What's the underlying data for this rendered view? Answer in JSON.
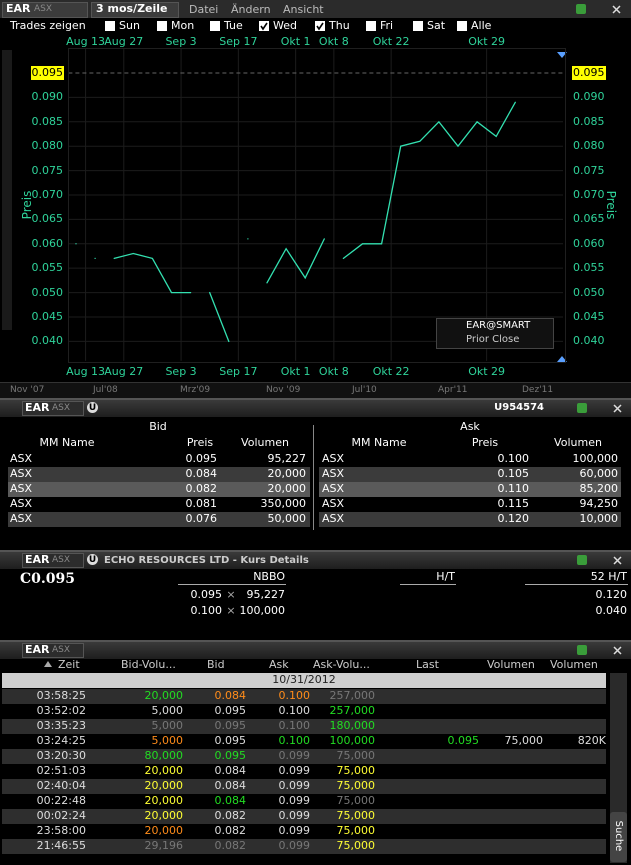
{
  "chart_window": {
    "symbol": "EAR",
    "exchange": "ASX",
    "period": "3 mos/Zeile",
    "menu": [
      "Datei",
      "Ändern",
      "Ansicht"
    ],
    "trades_label": "Trades zeigen",
    "days": [
      {
        "label": "Sun",
        "checked": false
      },
      {
        "label": "Mon",
        "checked": false
      },
      {
        "label": "Tue",
        "checked": false
      },
      {
        "label": "Wed",
        "checked": true
      },
      {
        "label": "Thu",
        "checked": true
      },
      {
        "label": "Fri",
        "checked": false
      },
      {
        "label": "Sat",
        "checked": false
      },
      {
        "label": "Alle",
        "checked": false
      }
    ],
    "chart_data": {
      "type": "line",
      "y_label": "Preis",
      "x": [
        0,
        0.5,
        1,
        1.5,
        2,
        3,
        4,
        5,
        6,
        6.5,
        7,
        8,
        8.5,
        9,
        9.5,
        10,
        11,
        12,
        13,
        13.5,
        14,
        15,
        16,
        17,
        18,
        19,
        20,
        21,
        22,
        23
      ],
      "series": [
        {
          "name": "EAR@SMART",
          "color": "#33e0b0",
          "values": [
            0.06,
            null,
            0.057,
            null,
            0.057,
            0.058,
            0.057,
            0.05,
            0.05,
            null,
            0.05,
            0.04,
            null,
            0.061,
            null,
            0.052,
            0.059,
            0.053,
            0.061,
            null,
            0.057,
            0.06,
            0.06,
            0.08,
            0.081,
            0.085,
            0.08,
            0.085,
            0.082,
            0.089
          ]
        }
      ],
      "prior_close_label": "Prior Close",
      "prior_close": 0.095,
      "xlim": [
        -0.4,
        25.5
      ],
      "ylim": [
        0.036,
        0.1
      ],
      "xticks": [
        {
          "value": 0.5,
          "label": "Aug 13"
        },
        {
          "value": 2.5,
          "label": "Aug 27"
        },
        {
          "value": 5.5,
          "label": "Sep 3"
        },
        {
          "value": 8.5,
          "label": "Sep 17"
        },
        {
          "value": 11.5,
          "label": "Okt 1"
        },
        {
          "value": 13.5,
          "label": "Okt 8"
        },
        {
          "value": 16.5,
          "label": "Okt 22"
        },
        {
          "value": 21.5,
          "label": "Okt 29"
        }
      ],
      "yticks": [
        {
          "value": 0.04,
          "label": "0.040"
        },
        0.045,
        {
          "value": 0.05,
          "label": "0.050"
        },
        0.055,
        {
          "value": 0.06,
          "label": "0.060"
        },
        0.065,
        {
          "value": 0.07,
          "label": "0.070"
        },
        0.075,
        {
          "value": 0.08,
          "label": "0.080"
        },
        0.085,
        {
          "value": 0.09,
          "label": "0.090"
        }
      ],
      "grid": true
    },
    "overview_labels": [
      "Nov '07",
      "Jul'08",
      "Mrz'09",
      "Nov '09",
      "Jul'10",
      "Apr'11",
      "Dez'11"
    ]
  },
  "book": {
    "symbol": "EAR",
    "exchange": "ASX",
    "badge": "U",
    "account": "U954574",
    "bid_title": "Bid",
    "ask_title": "Ask",
    "columns": [
      "MM Name",
      "Preis",
      "Volumen"
    ],
    "bid_rows": [
      [
        "ASX",
        "0.095",
        "95,227"
      ],
      [
        "ASX",
        "0.084",
        "20,000"
      ],
      [
        "ASX",
        "0.082",
        "20,000"
      ],
      [
        "ASX",
        "0.081",
        "350,000"
      ],
      [
        "ASX",
        "0.076",
        "50,000"
      ]
    ],
    "ask_rows": [
      [
        "ASX",
        "0.100",
        "100,000"
      ],
      [
        "ASX",
        "0.105",
        "60,000"
      ],
      [
        "ASX",
        "0.110",
        "85,200"
      ],
      [
        "ASX",
        "0.115",
        "94,250"
      ],
      [
        "ASX",
        "0.120",
        "10,000"
      ]
    ]
  },
  "details": {
    "symbol": "EAR",
    "exchange": "ASX",
    "badge": "U",
    "title": "ECHO RESOURCES LTD - Kurs Details",
    "last": "C0.095",
    "nbbo_label": "NBBO",
    "ht_label": "H/T",
    "hl52_label": "52 H/T",
    "nbbo": [
      [
        "0.095",
        "×",
        "95,227"
      ],
      [
        "0.100",
        "×",
        "100,000"
      ]
    ],
    "hl52": [
      "0.120",
      "0.040"
    ]
  },
  "trades": {
    "symbol": "EAR",
    "exchange": "ASX",
    "columns": [
      "Zeit",
      "Bid-Volu...",
      "Bid",
      "Ask",
      "Ask-Volu...",
      "Last",
      "Volumen",
      "Volumen"
    ],
    "date": "10/31/2012",
    "rows": [
      {
        "time": "03:58:25",
        "bid_size": "20,000",
        "bid": "0.084",
        "ask": "0.100",
        "ask_size": "257,000"
      },
      {
        "time": "03:52:02",
        "bid_size": "5,000",
        "bid": "0.095",
        "ask": "0.100",
        "ask_size": "257,000"
      },
      {
        "time": "03:35:23",
        "bid_size": "5,000",
        "bid": "0.095",
        "ask": "0.100",
        "ask_size": "180,000"
      },
      {
        "time": "03:24:25",
        "bid_size": "5,000",
        "bid": "0.095",
        "ask": "0.100",
        "ask_size": "100,000",
        "last": "0.095",
        "volume": "75,000",
        "total_volume": "820K"
      },
      {
        "time": "03:20:30",
        "bid_size": "80,000",
        "bid": "0.095",
        "ask": "0.099",
        "ask_size": "75,000"
      },
      {
        "time": "02:51:03",
        "bid_size": "20,000",
        "bid": "0.084",
        "ask": "0.099",
        "ask_size": "75,000"
      },
      {
        "time": "02:40:04",
        "bid_size": "20,000",
        "bid": "0.084",
        "ask": "0.099",
        "ask_size": "75,000"
      },
      {
        "time": "00:22:48",
        "bid_size": "20,000",
        "bid": "0.084",
        "ask": "0.099",
        "ask_size": "75,000"
      },
      {
        "time": "00:02:24",
        "bid_size": "20,000",
        "bid": "0.082",
        "ask": "0.099",
        "ask_size": "75,000"
      },
      {
        "time": "23:58:00",
        "bid_size": "20,000",
        "bid": "0.082",
        "ask": "0.099",
        "ask_size": "75,000"
      },
      {
        "time": "21:46:55",
        "bid_size": "29,196",
        "bid": "0.082",
        "ask": "0.099",
        "ask_size": "75,000"
      }
    ],
    "search": "Suche"
  }
}
